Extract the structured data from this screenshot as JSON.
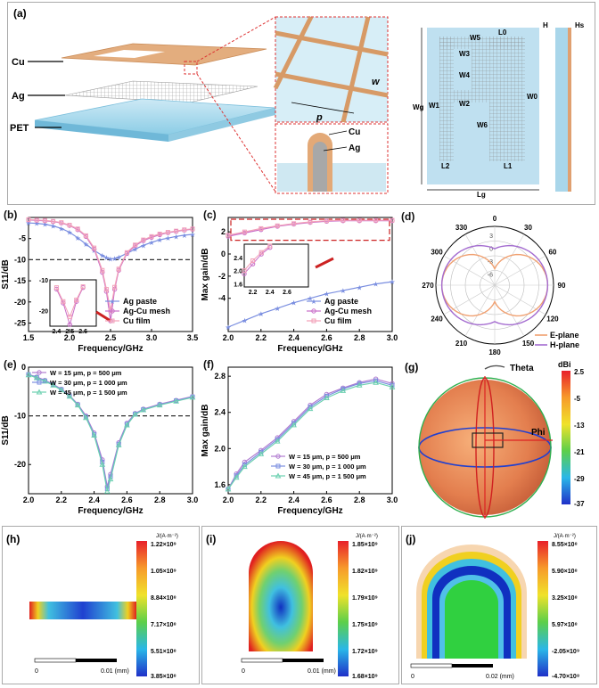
{
  "panels": {
    "a": {
      "label": "(a)",
      "layers": [
        "Cu",
        "Ag",
        "PET"
      ],
      "zoom_labels": {
        "w": "w",
        "p": "p",
        "cu": "Cu",
        "ag": "Ag"
      },
      "dims": {
        "w5": "W5",
        "l0": "L0",
        "w3": "W3",
        "w4": "W4",
        "w2": "W2",
        "w6": "W6",
        "w1": "W1",
        "w0": "W0",
        "wg": "Wg",
        "l2": "L2",
        "l1": "L1",
        "lg": "Lg",
        "h": "H",
        "hs": "Hs"
      },
      "colors": {
        "cu": "#e0a574",
        "ag": "#c8c8c8",
        "pet": "#a8d8ec",
        "outline": "#d33"
      }
    },
    "b": {
      "label": "(b)"
    },
    "c": {
      "label": "(c)"
    },
    "d": {
      "label": "(d)"
    },
    "e": {
      "label": "(e)"
    },
    "f": {
      "label": "(f)"
    },
    "g": {
      "label": "(g)",
      "theta": "Theta",
      "phi": "Phi",
      "unit": "dBi",
      "ticks": [
        "2.5",
        "-5",
        "-13",
        "-21",
        "-29",
        "-37"
      ]
    },
    "h": {
      "label": "(h)",
      "unit": "J/(A·m⁻²)",
      "ticks": [
        "1.22×10⁹",
        "1.05×10⁹",
        "8.84×10⁸",
        "7.17×10⁸",
        "5.51×10⁸",
        "3.85×10⁸"
      ],
      "scale": [
        "0",
        "0.01 (mm)"
      ]
    },
    "i": {
      "label": "(i)",
      "unit": "J/(A·m⁻²)",
      "ticks": [
        "1.85×10⁹",
        "1.82×10⁹",
        "1.79×10⁹",
        "1.75×10⁹",
        "1.72×10⁹",
        "1.68×10⁹"
      ],
      "scale": [
        "0",
        "0.01 (mm)"
      ]
    },
    "j": {
      "label": "(j)",
      "unit": "J/(A·m⁻²)",
      "ticks": [
        "8.55×10⁸",
        "5.90×10⁸",
        "3.25×10⁸",
        "5.97×10⁸",
        "-2.05×10⁹",
        "-4.70×10⁸"
      ],
      "scale": [
        "0",
        "0.02 (mm)"
      ]
    }
  },
  "chart_data": [
    {
      "id": "b",
      "type": "line",
      "xlabel": "Frequency/GHz",
      "ylabel": "S11/dB",
      "xlim": [
        1.5,
        3.5
      ],
      "ylim": [
        -27,
        0
      ],
      "xticks": [
        "1.5",
        "2.0",
        "2.5",
        "3.0",
        "3.5"
      ],
      "yticks": [
        "-5",
        "-10",
        "-15",
        "-20",
        "-25"
      ],
      "refline": -10,
      "x": [
        1.5,
        1.6,
        1.7,
        1.8,
        1.9,
        2.0,
        2.1,
        2.2,
        2.3,
        2.4,
        2.45,
        2.5,
        2.55,
        2.6,
        2.7,
        2.8,
        2.9,
        3.0,
        3.1,
        3.2,
        3.3,
        3.4,
        3.5
      ],
      "series": [
        {
          "name": "Ag paste",
          "color": "#7a8ee0",
          "marker": "star",
          "values": [
            -1.3,
            -1.4,
            -1.6,
            -2.0,
            -2.6,
            -3.5,
            -4.8,
            -6.3,
            -7.8,
            -9.0,
            -9.5,
            -9.8,
            -9.7,
            -9.4,
            -8.5,
            -7.5,
            -6.6,
            -5.9,
            -5.3,
            -4.9,
            -4.5,
            -4.2,
            -4.0
          ]
        },
        {
          "name": "Ag-Cu mesh",
          "color": "#c86cc8",
          "marker": "circle",
          "values": [
            -0.6,
            -0.7,
            -0.8,
            -1.0,
            -1.3,
            -1.9,
            -2.9,
            -4.5,
            -7.5,
            -13.0,
            -17.5,
            -24.5,
            -17.0,
            -12.5,
            -8.5,
            -6.7,
            -5.5,
            -4.7,
            -4.1,
            -3.6,
            -3.3,
            -3.0,
            -2.8
          ]
        },
        {
          "name": "Cu film",
          "color": "#f2a0b8",
          "marker": "square",
          "values": [
            -0.5,
            -0.6,
            -0.7,
            -0.9,
            -1.2,
            -1.8,
            -2.7,
            -4.3,
            -7.2,
            -12.5,
            -17.0,
            -22.0,
            -16.5,
            -12.2,
            -8.3,
            -6.5,
            -5.3,
            -4.5,
            -3.9,
            -3.5,
            -3.2,
            -2.9,
            -2.7
          ]
        }
      ],
      "inset": {
        "xlim": [
          2.35,
          2.7
        ],
        "ylim": [
          -25,
          -10
        ],
        "xticks": [
          "2.4",
          "2.5",
          "2.6"
        ],
        "yticks": [
          "-10",
          "-20"
        ]
      }
    },
    {
      "id": "c",
      "type": "line",
      "xlabel": "Frequency/GHz",
      "ylabel": "Max gain/dB",
      "xlim": [
        2.0,
        3.0
      ],
      "ylim": [
        -7,
        3.3
      ],
      "xticks": [
        "2.0",
        "2.2",
        "2.4",
        "2.6",
        "2.8",
        "3.0"
      ],
      "yticks": [
        "2",
        "0",
        "-2",
        "-4"
      ],
      "x": [
        2.0,
        2.1,
        2.2,
        2.3,
        2.4,
        2.5,
        2.6,
        2.7,
        2.8,
        2.9,
        3.0
      ],
      "series": [
        {
          "name": "Ag paste",
          "color": "#7a8ee0",
          "marker": "star",
          "values": [
            -6.6,
            -6.0,
            -5.4,
            -4.9,
            -4.4,
            -4.0,
            -3.6,
            -3.3,
            -3.0,
            -2.7,
            -2.5
          ]
        },
        {
          "name": "Ag-Cu mesh",
          "color": "#c86cc8",
          "marker": "circle",
          "values": [
            1.6,
            1.9,
            2.2,
            2.5,
            2.7,
            2.85,
            2.95,
            3.0,
            3.0,
            3.0,
            3.0
          ]
        },
        {
          "name": "Cu film",
          "color": "#f2a0b8",
          "marker": "square",
          "values": [
            1.7,
            2.0,
            2.3,
            2.55,
            2.75,
            2.9,
            3.0,
            3.05,
            3.05,
            3.05,
            3.05
          ]
        }
      ],
      "inset": {
        "xlim": [
          2.1,
          2.85
        ],
        "ylim": [
          1.5,
          2.8
        ],
        "xticks": [
          "2.2",
          "2.4",
          "2.6"
        ],
        "yticks": [
          "2.4",
          "2.0",
          "1.6"
        ]
      }
    },
    {
      "id": "d",
      "type": "polar",
      "angles": [
        "0",
        "30",
        "60",
        "90",
        "120",
        "150",
        "180",
        "210",
        "240",
        "270",
        "300",
        "330"
      ],
      "rticks": [
        "3",
        "0",
        "-3",
        "-6"
      ],
      "series": [
        {
          "name": "E-plane",
          "color": "#f0a070"
        },
        {
          "name": "H-plane",
          "color": "#a46cd0"
        }
      ]
    },
    {
      "id": "e",
      "type": "line",
      "xlabel": "Frequency/GHz",
      "ylabel": "S11/dB",
      "xlim": [
        2.0,
        3.0
      ],
      "ylim": [
        -26,
        0
      ],
      "xticks": [
        "2.0",
        "2.2",
        "2.4",
        "2.6",
        "2.8",
        "3.0"
      ],
      "yticks": [
        "0",
        "-10",
        "-20"
      ],
      "refline": -10,
      "x": [
        2.0,
        2.05,
        2.1,
        2.15,
        2.2,
        2.25,
        2.3,
        2.35,
        2.4,
        2.45,
        2.48,
        2.5,
        2.55,
        2.6,
        2.65,
        2.7,
        2.8,
        2.9,
        3.0
      ],
      "series": [
        {
          "name": "W = 15 μm, p = 500 μm",
          "color": "#b07ad0",
          "marker": "circle",
          "values": [
            -1.5,
            -2.0,
            -2.7,
            -3.5,
            -4.5,
            -5.8,
            -7.6,
            -10.0,
            -13.5,
            -19.0,
            -24.5,
            -22.0,
            -15.5,
            -11.5,
            -9.5,
            -8.6,
            -7.6,
            -6.8,
            -6.0
          ]
        },
        {
          "name": "W = 30 μm, p = 1 000 μm",
          "color": "#7a8ee0",
          "marker": "square",
          "values": [
            -1.5,
            -2.1,
            -2.8,
            -3.6,
            -4.6,
            -5.9,
            -7.7,
            -10.2,
            -13.8,
            -19.5,
            -25.0,
            -22.5,
            -15.8,
            -11.7,
            -9.6,
            -8.7,
            -7.7,
            -6.9,
            -6.1
          ]
        },
        {
          "name": "W = 45 μm, p = 1 500 μm",
          "color": "#6cd0b0",
          "marker": "triangle",
          "values": [
            -1.6,
            -2.2,
            -2.9,
            -3.7,
            -4.7,
            -6.0,
            -7.8,
            -10.4,
            -14.0,
            -20.0,
            -25.5,
            -23.0,
            -16.0,
            -11.9,
            -9.7,
            -8.8,
            -7.8,
            -7.0,
            -6.2
          ]
        }
      ]
    },
    {
      "id": "f",
      "type": "line",
      "xlabel": "Frequency/GHz",
      "ylabel": "Max gain/dB",
      "xlim": [
        2.0,
        3.0
      ],
      "ylim": [
        1.5,
        2.9
      ],
      "xticks": [
        "2.0",
        "2.2",
        "2.4",
        "2.6",
        "2.8",
        "3.0"
      ],
      "yticks": [
        "2.8",
        "2.4",
        "2.0",
        "1.6"
      ],
      "x": [
        2.0,
        2.05,
        2.1,
        2.2,
        2.3,
        2.4,
        2.5,
        2.6,
        2.7,
        2.8,
        2.9,
        3.0
      ],
      "series": [
        {
          "name": "W = 15 μm, p = 500 μm",
          "color": "#b07ad0",
          "marker": "circle",
          "values": [
            1.55,
            1.72,
            1.85,
            1.98,
            2.12,
            2.3,
            2.48,
            2.6,
            2.67,
            2.73,
            2.77,
            2.72
          ]
        },
        {
          "name": "W = 30 μm, p = 1 000 μm",
          "color": "#7a8ee0",
          "marker": "square",
          "values": [
            1.55,
            1.7,
            1.82,
            1.96,
            2.1,
            2.28,
            2.46,
            2.58,
            2.66,
            2.72,
            2.75,
            2.7
          ]
        },
        {
          "name": "W = 45 μm, p = 1 500 μm",
          "color": "#6cd0b0",
          "marker": "triangle",
          "values": [
            1.55,
            1.68,
            1.8,
            1.94,
            2.08,
            2.26,
            2.44,
            2.56,
            2.64,
            2.7,
            2.73,
            2.68
          ]
        }
      ]
    }
  ]
}
